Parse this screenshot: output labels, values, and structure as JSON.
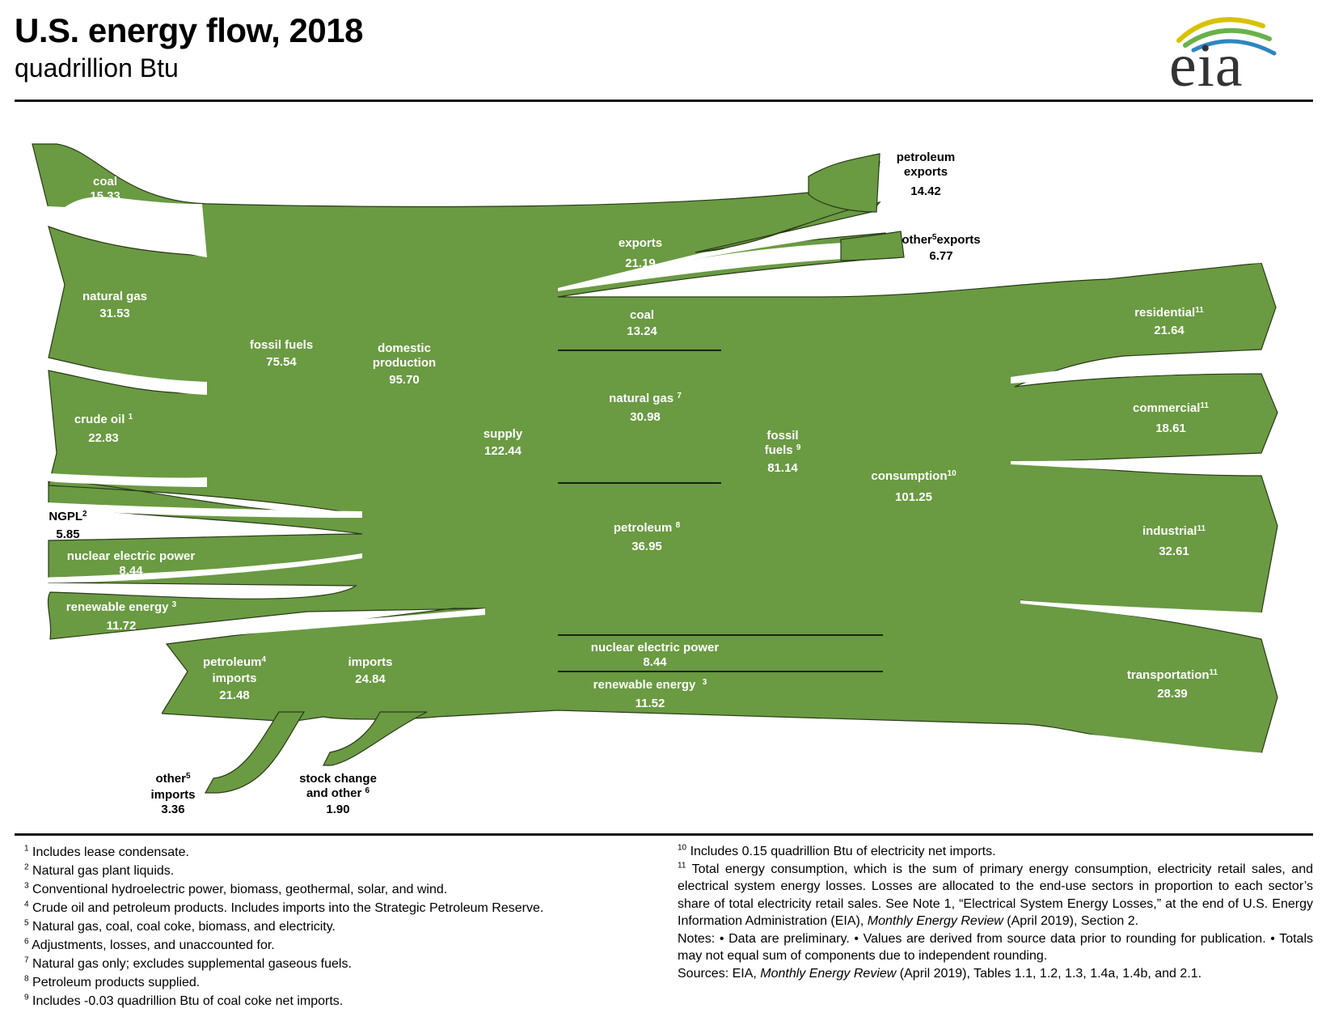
{
  "header": {
    "title": "U.S. energy flow, 2018",
    "subtitle": "quadrillion Btu",
    "logo_text": "eia"
  },
  "colors": {
    "flow_fill": "#6a9a42",
    "flow_stroke": "#2a3a18",
    "logo_yellow": "#d9c100",
    "logo_green": "#6ab04c",
    "logo_blue": "#2e86c1"
  },
  "labels": {
    "coal_src": {
      "name": "coal",
      "value": "15.33"
    },
    "natgas_src": {
      "name": "natural gas",
      "value": "31.53"
    },
    "crude_src": {
      "name": "crude oil",
      "sup": "1",
      "value": "22.83"
    },
    "ngpl_src": {
      "name": "NGPL",
      "sup": "2",
      "value": "5.85"
    },
    "nuclear_src": {
      "name": "nuclear electric power",
      "value": "8.44"
    },
    "renew_src": {
      "name": "renewable energy",
      "sup": "3",
      "value": "11.72"
    },
    "fossil_prod": {
      "name": "fossil fuels",
      "value": "75.54"
    },
    "domestic": {
      "name1": "domestic",
      "name2": "production",
      "value": "95.70"
    },
    "pet_imports": {
      "name1": "petroleum",
      "sup": "4",
      "name2": "imports",
      "value": "21.48"
    },
    "imports": {
      "name": "imports",
      "value": "24.84"
    },
    "other_imports": {
      "name1": "other",
      "sup": "5",
      "name2": "imports",
      "value": "3.36"
    },
    "stock": {
      "name1": "stock change",
      "name2": "and other",
      "sup": "6",
      "value": "1.90"
    },
    "supply": {
      "name": "supply",
      "value": "122.44"
    },
    "exports": {
      "name": "exports",
      "value": "21.19"
    },
    "pet_exports": {
      "name1": "petroleum",
      "name2": "exports",
      "value": "14.42"
    },
    "other_exports": {
      "name1": "other",
      "sup": "5",
      "name2": "exports",
      "value": "6.77"
    },
    "coal_cons": {
      "name": "coal",
      "value": "13.24"
    },
    "natgas_cons": {
      "name": "natural gas",
      "sup": "7",
      "value": "30.98"
    },
    "petroleum_cons": {
      "name": "petroleum",
      "sup": "8",
      "value": "36.95"
    },
    "nuclear_cons": {
      "name": "nuclear electric power",
      "value": "8.44"
    },
    "renew_cons": {
      "name": "renewable energy",
      "sup": "3",
      "value": "11.52"
    },
    "fossil_cons": {
      "name1": "fossil",
      "name2": "fuels",
      "sup": "9",
      "value": "81.14"
    },
    "consumption": {
      "name": "consumption",
      "sup": "10",
      "value": "101.25"
    },
    "residential": {
      "name": "residential",
      "sup": "11",
      "value": "21.64"
    },
    "commercial": {
      "name": "commercial",
      "sup": "11",
      "value": "18.61"
    },
    "industrial": {
      "name": "industrial",
      "sup": "11",
      "value": "32.61"
    },
    "transportation": {
      "name": "transportation",
      "sup": "11",
      "value": "28.39"
    }
  },
  "footnotes_left": [
    {
      "n": "1",
      "text": "Includes lease condensate."
    },
    {
      "n": "2",
      "text": "Natural gas plant liquids."
    },
    {
      "n": "3",
      "text": "Conventional hydroelectric power, biomass, geothermal, solar, and wind."
    },
    {
      "n": "4",
      "text": "Crude oil and petroleum products.  Includes imports into the Strategic Petroleum Reserve."
    },
    {
      "n": "5",
      "text": "Natural gas, coal, coal coke, biomass, and electricity."
    },
    {
      "n": "6",
      "text": "Adjustments, losses, and unaccounted for."
    },
    {
      "n": "7",
      "text": "Natural gas only; excludes supplemental gaseous fuels."
    },
    {
      "n": "8",
      "text": "Petroleum products supplied."
    },
    {
      "n": "9",
      "text": "Includes -0.03 quadrillion Btu of coal coke net imports."
    }
  ],
  "footnotes_right": {
    "n10": "10",
    "t10": "Includes 0.15 quadrillion Btu of electricity net imports.",
    "n11": "11",
    "t11": "Total energy consumption, which is the sum of primary energy consumption, electricity retail sales, and electrical system energy losses.  Losses are allocated to the end-use sectors in proportion to each sector’s share of total electricity retail sales.  See Note 1, “Electrical System Energy Losses,” at the end of U.S. Energy Information Administration (EIA), ",
    "t11_ital": "Monthly Energy Review",
    "t11_end": " (April 2019), Section 2.",
    "notes": "Notes: •  Data are preliminary.  •  Values are derived from source data prior to rounding for publication.  •  Totals may not equal sum of components due to independent rounding.",
    "sources_pre": "Sources:  EIA, ",
    "sources_ital": "Monthly Energy Review",
    "sources_post": " (April 2019), Tables 1.1, 1.2, 1.3, 1.4a, 1.4b, and 2.1."
  }
}
